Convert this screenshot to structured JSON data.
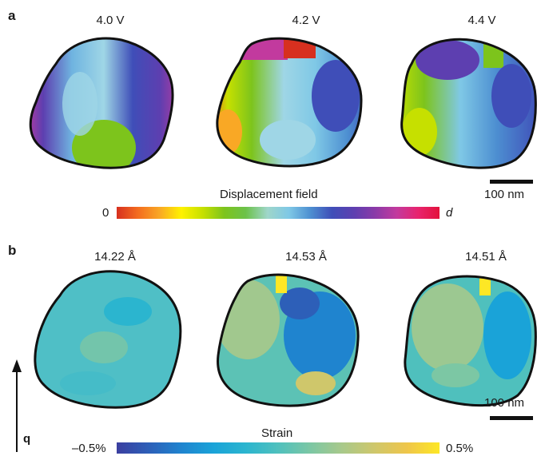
{
  "panel_a": {
    "letter": "a",
    "labels": [
      "4.0 V",
      "4.2 V",
      "4.4 V"
    ],
    "colorbar_title": "Displacement field",
    "colorbar_min": "0",
    "colorbar_max": "d",
    "colorbar_colors": [
      "#d7301f",
      "#f46d1f",
      "#f9a825",
      "#fff200",
      "#c6e000",
      "#7dc41c",
      "#6cc24a",
      "#9fd6c9",
      "#7fc8e6",
      "#4d8fd1",
      "#3f4eb8",
      "#5d3fb0",
      "#8a3aa8",
      "#c23a9e",
      "#e8246e",
      "#e3123c"
    ],
    "scale_bar": "100 nm"
  },
  "panel_b": {
    "letter": "b",
    "labels": [
      "14.22 Å",
      "14.53 Å",
      "14.51 Å"
    ],
    "colorbar_title": "Strain",
    "colorbar_min": "–0.5%",
    "colorbar_max": "0.5%",
    "colorbar_colors": [
      "#3b3fa0",
      "#2d5fb8",
      "#1f84cf",
      "#1aa3d8",
      "#2bb5cf",
      "#4fc0bd",
      "#7cc7a4",
      "#a9c98a",
      "#cfc76b",
      "#efc64a",
      "#fde725"
    ],
    "scale_bar": "100 nm",
    "axis_label": "q"
  }
}
